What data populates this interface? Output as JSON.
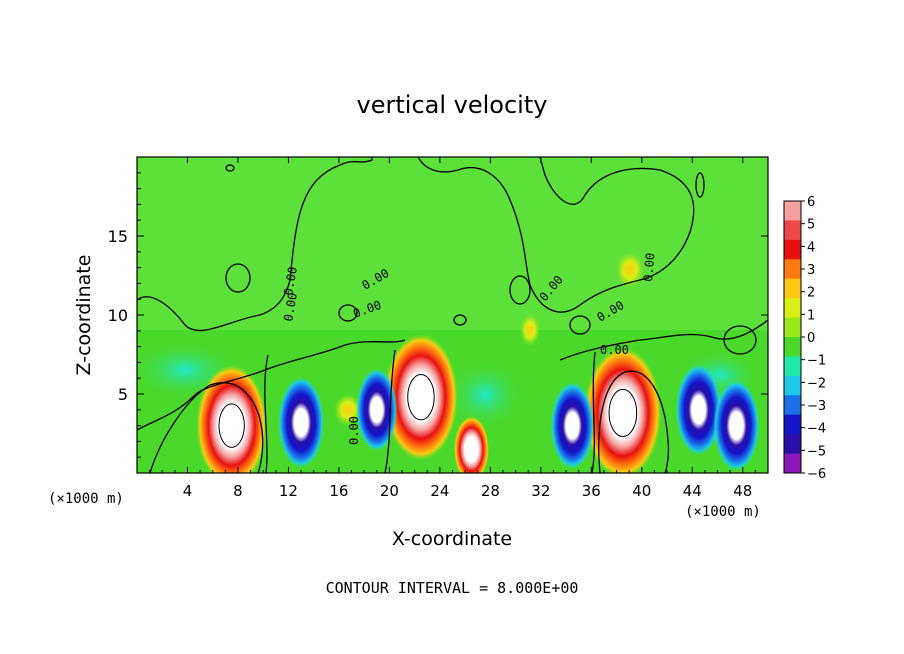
{
  "chart_data": {
    "type": "heatmap",
    "title": "vertical velocity",
    "xlabel": "X-coordinate",
    "ylabel": "Z-coordinate",
    "x_unit": "(×1000 m)",
    "xlim": [
      0,
      50
    ],
    "ylim": [
      0,
      20
    ],
    "x_ticks": [
      4,
      8,
      12,
      16,
      20,
      24,
      28,
      32,
      36,
      40,
      44,
      48
    ],
    "y_ticks": [
      5,
      10,
      15
    ],
    "colorbar": {
      "ticks": [
        "6",
        "5",
        "4",
        "3",
        "2",
        "1",
        "0",
        "−1",
        "−2",
        "−3",
        "−4",
        "−5",
        "−6"
      ],
      "colors": [
        "#f4a0a0",
        "#ee4a4a",
        "#e81010",
        "#ff7a10",
        "#ffc814",
        "#d8ee14",
        "#9ae81c",
        "#4ad82a",
        "#20e8a8",
        "#1ec8e8",
        "#1a70e8",
        "#1414c8",
        "#2a10a8",
        "#8a18b8"
      ]
    },
    "contour_labels": [
      "0.00",
      "0.00",
      "0.00",
      "0.00",
      "0.00",
      "0.00",
      "0.00",
      "0.00",
      "0.00"
    ],
    "footer": "CONTOUR INTERVAL = 8.000E+00",
    "updrafts": [
      {
        "x": 7.5,
        "z": 3.0,
        "w": 8.5
      },
      {
        "x": 22.5,
        "z": 4.8,
        "w": 9.0
      },
      {
        "x": 38.5,
        "z": 3.8,
        "w": 9.5
      },
      {
        "x": 26.5,
        "z": 1.5,
        "w": 3.0
      }
    ],
    "downdrafts": [
      {
        "x": 13.0,
        "z": 3.2,
        "w": -7.0
      },
      {
        "x": 19.0,
        "z": 4.0,
        "w": -6.0
      },
      {
        "x": 34.5,
        "z": 3.0,
        "w": -6.5
      },
      {
        "x": 44.5,
        "z": 4.0,
        "w": -7.0
      },
      {
        "x": 47.5,
        "z": 3.0,
        "w": -7.0
      }
    ]
  }
}
